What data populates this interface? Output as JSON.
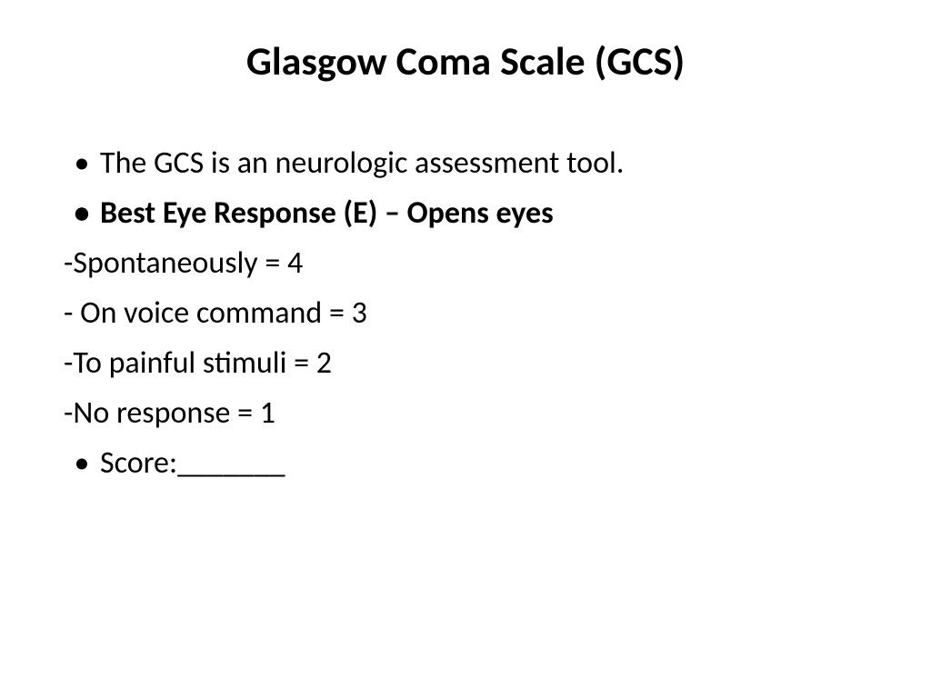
{
  "slide": {
    "title": "Glasgow Coma Scale (GCS)",
    "title_fontsize": 44,
    "title_weight": "bold",
    "title_align": "center",
    "body_fontsize": 34,
    "background_color": "#ffffff",
    "text_color": "#000000",
    "font_family": "Calibri, Arial, sans-serif",
    "items": [
      {
        "type": "bullet",
        "text": "The GCS is an neurologic assessment tool.",
        "bold": false
      },
      {
        "type": "bullet",
        "text": "Best Eye Response (E) – Opens eyes",
        "bold": true
      },
      {
        "type": "dash",
        "text": "-Spontaneously = 4"
      },
      {
        "type": "dash",
        "text": "- On voice command  = 3"
      },
      {
        "type": "dash",
        "text": "-To painful stimuli          = 2"
      },
      {
        "type": "dash",
        "text": "-No response   = 1"
      },
      {
        "type": "bullet",
        "text": "Score:_______",
        "bold": false
      }
    ]
  }
}
